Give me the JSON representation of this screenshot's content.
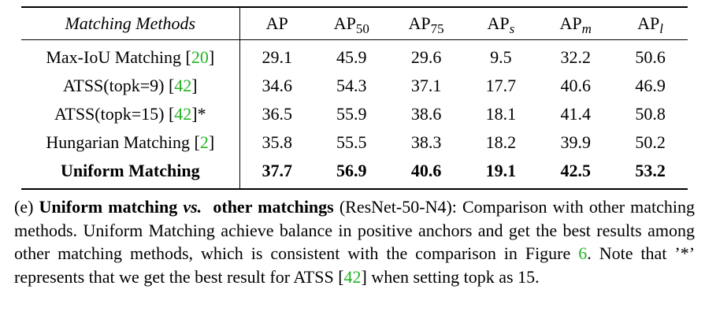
{
  "table": {
    "header": {
      "method": "Matching Methods",
      "ap": "AP",
      "ap50": {
        "base": "AP",
        "sub": "50"
      },
      "ap75": {
        "base": "AP",
        "sub": "75"
      },
      "aps": {
        "base": "AP",
        "sub": "s"
      },
      "apm": {
        "base": "AP",
        "sub": "m"
      },
      "apl": {
        "base": "AP",
        "sub": "l"
      }
    },
    "rows": [
      {
        "name": "Max-IoU Matching",
        "ref": "20",
        "suffix": "",
        "ap": "29.1",
        "ap50": "45.9",
        "ap75": "29.6",
        "aps": "9.5",
        "apm": "32.2",
        "apl": "50.6"
      },
      {
        "name": "ATSS(topk=9)",
        "ref": "42",
        "suffix": "",
        "ap": "34.6",
        "ap50": "54.3",
        "ap75": "37.1",
        "aps": "17.7",
        "apm": "40.6",
        "apl": "46.9"
      },
      {
        "name": "ATSS(topk=15)",
        "ref": "42",
        "suffix": "*",
        "ap": "36.5",
        "ap50": "55.9",
        "ap75": "38.6",
        "aps": "18.1",
        "apm": "41.4",
        "apl": "50.8"
      },
      {
        "name": "Hungarian Matching",
        "ref": "2",
        "suffix": "",
        "ap": "35.8",
        "ap50": "55.5",
        "ap75": "38.3",
        "aps": "18.2",
        "apm": "39.9",
        "apl": "50.2"
      },
      {
        "name": "Uniform Matching",
        "ref": "",
        "suffix": "",
        "ap": "37.7",
        "ap50": "56.9",
        "ap75": "40.6",
        "aps": "19.1",
        "apm": "42.5",
        "apl": "53.2"
      }
    ]
  },
  "caption": {
    "label": "(e)",
    "bold1": "Uniform matching",
    "vs": "vs.",
    "bold2": "other matchings",
    "text1": "(ResNet-50-N4): Comparison with other matching methods. Uniform Matching achieve balance in positive anchors and get the best results among other matching methods, which is consistent with the comparison in Figure",
    "fig_ref": "6",
    "text2": ". Note that ’*’ represents that we get the best result for ATSS",
    "ref_open": "[",
    "ref": "42",
    "ref_close": "]",
    "text3": "when setting topk as 15."
  },
  "colors": {
    "reference_link": "#22b422",
    "text": "#000000"
  }
}
